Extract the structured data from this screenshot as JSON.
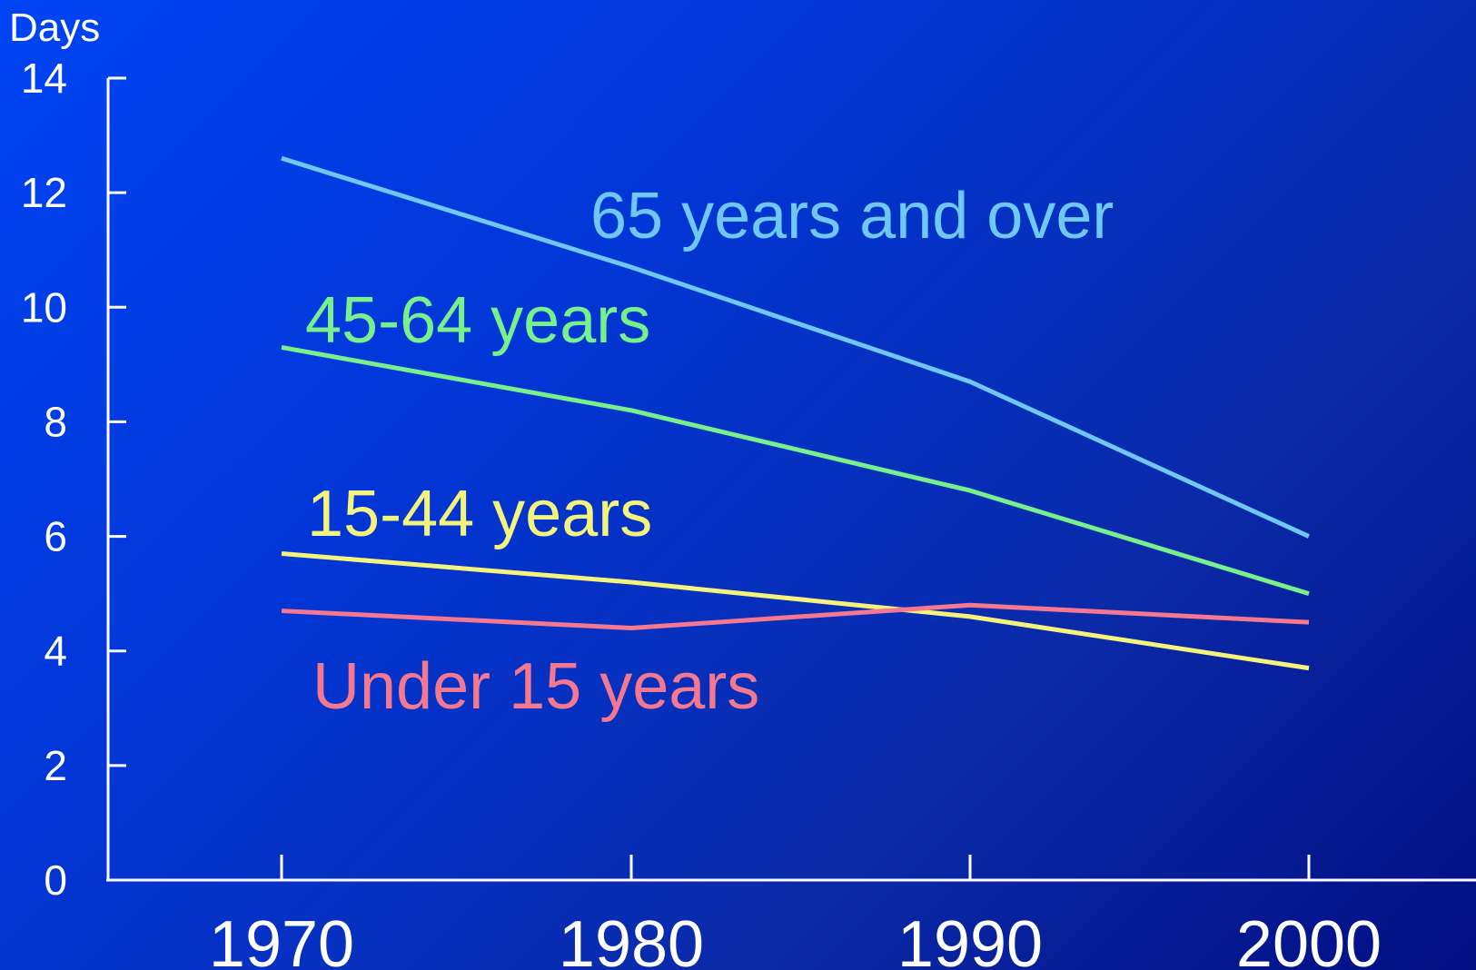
{
  "chart_data": {
    "type": "line",
    "title": "",
    "xlabel": "",
    "ylabel": "Days",
    "x": [
      "1970",
      "1980",
      "1990",
      "2000"
    ],
    "ylim": [
      0,
      14
    ],
    "yticks": [
      "0",
      "2",
      "4",
      "6",
      "8",
      "10",
      "12",
      "14"
    ],
    "grid": false,
    "series": [
      {
        "name": "65 years and over",
        "values": [
          12.6,
          10.7,
          8.7,
          6.0
        ],
        "color": "#6fc8f4"
      },
      {
        "name": "45-64 years",
        "values": [
          9.3,
          8.2,
          6.8,
          5.0
        ],
        "color": "#78f08c"
      },
      {
        "name": "15-44 years",
        "values": [
          5.7,
          5.2,
          4.6,
          3.7
        ],
        "color": "#f4f47c"
      },
      {
        "name": "Under 15 years",
        "values": [
          4.7,
          4.4,
          4.8,
          4.5
        ],
        "color": "#f47890"
      }
    ]
  }
}
